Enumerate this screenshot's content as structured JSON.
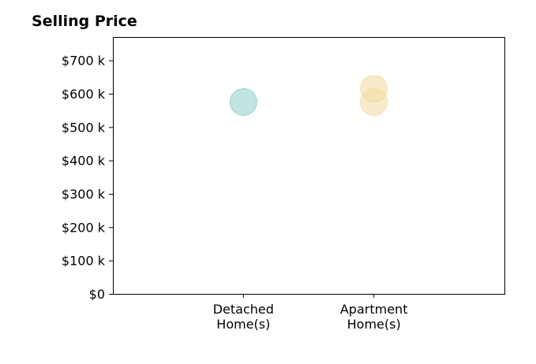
{
  "chart_data": {
    "type": "scatter",
    "title": "Selling Price",
    "xlabel": "",
    "ylabel": "",
    "categories": [
      [
        "Detached",
        "Home(s)"
      ],
      [
        "Apartment",
        "Home(s)"
      ]
    ],
    "ylim": [
      0,
      770000
    ],
    "yticks": [
      0,
      100000,
      200000,
      300000,
      400000,
      500000,
      600000,
      700000
    ],
    "ytick_labels": [
      "$0",
      "$100 k",
      "$200 k",
      "$300 k",
      "$400 k",
      "$500 k",
      "$600 k",
      "$700 k"
    ],
    "grid": false,
    "series": [
      {
        "color": "#8ecfc9",
        "points": [
          {
            "category": 0,
            "y": 575000
          }
        ]
      },
      {
        "color": "#f3dba0",
        "points": [
          {
            "category": 1,
            "y": 615000
          },
          {
            "category": 1,
            "y": 575000
          }
        ]
      }
    ]
  }
}
